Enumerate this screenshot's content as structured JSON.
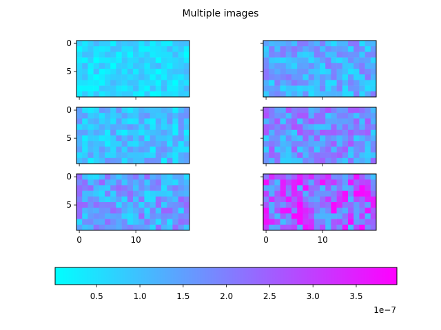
{
  "title": "Multiple images",
  "colormap": {
    "name": "cool",
    "start": "#00ffff",
    "end": "#ff00ff"
  },
  "chart_data": {
    "type": "heatmap",
    "grid": {
      "rows": 3,
      "cols": 2
    },
    "image_shape": [
      10,
      20
    ],
    "x_ticks": [
      0,
      10
    ],
    "y_ticks": [
      0,
      5
    ],
    "panels": [
      {
        "row": 0,
        "col": 0,
        "low": 0.0,
        "high": 0.3
      },
      {
        "row": 0,
        "col": 1,
        "low": 0.12,
        "high": 0.55
      },
      {
        "row": 1,
        "col": 0,
        "low": 0.06,
        "high": 0.45
      },
      {
        "row": 1,
        "col": 1,
        "low": 0.18,
        "high": 0.7
      },
      {
        "row": 2,
        "col": 0,
        "low": 0.12,
        "high": 0.62
      },
      {
        "row": 2,
        "col": 1,
        "low": 0.25,
        "high": 1.0
      }
    ],
    "colorbar": {
      "range": [
        0.0,
        4e-07
      ],
      "ticks": [
        0.5,
        1.0,
        1.5,
        2.0,
        2.5,
        3.0,
        3.5
      ],
      "tick_labels": [
        "0.5",
        "1.0",
        "1.5",
        "2.0",
        "2.5",
        "3.0",
        "3.5"
      ],
      "vmin": 0.02,
      "vmax": 3.97,
      "offset_label": "1e−7"
    }
  }
}
